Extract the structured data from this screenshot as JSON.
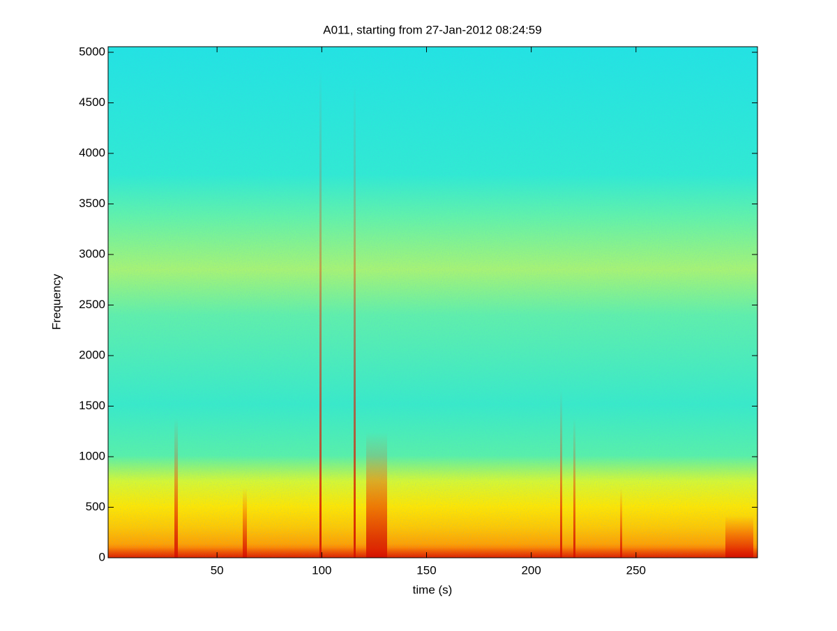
{
  "chart_data": {
    "type": "spectrogram",
    "title": "A011, starting from 27-Jan-2012 08:24:59",
    "x_label": "time (s)",
    "y_label": "Frequency",
    "xlim": [
      -2,
      308
    ],
    "ylim": [
      0,
      5055
    ],
    "xticks": [
      50,
      100,
      150,
      200,
      250
    ],
    "yticks": [
      0,
      500,
      1000,
      1500,
      2000,
      2500,
      3000,
      3500,
      4000,
      4500,
      5000
    ]
  }
}
